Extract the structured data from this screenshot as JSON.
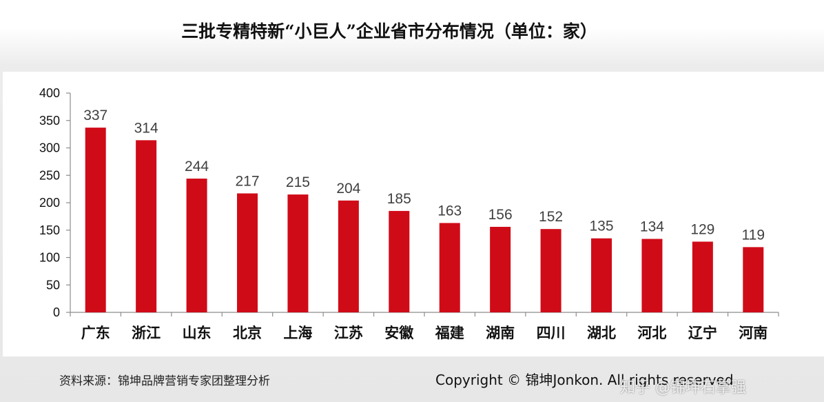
{
  "chart_data": {
    "type": "bar",
    "title": "三批专精特新“小巨人”企业省市分布情况（单位：家）",
    "categories": [
      "广东",
      "浙江",
      "山东",
      "北京",
      "上海",
      "江苏",
      "安徽",
      "福建",
      "湖南",
      "四川",
      "湖北",
      "河北",
      "辽宁",
      "河南"
    ],
    "values": [
      337,
      314,
      244,
      217,
      215,
      204,
      185,
      163,
      156,
      152,
      135,
      134,
      129,
      119
    ],
    "ylim": [
      0,
      400
    ],
    "yticks": [
      0,
      50,
      100,
      150,
      200,
      250,
      300,
      350,
      400
    ],
    "bar_color": "#d00b18",
    "data_labels": true,
    "grid": false,
    "xlabel": "",
    "ylabel": ""
  },
  "footer": {
    "source": "资料来源：锦坤品牌营销专家团整理分析",
    "copyright": "Copyright © 锦坤Jonkon. All rights reserved",
    "watermark": "知乎 @锦坤石掌强"
  }
}
